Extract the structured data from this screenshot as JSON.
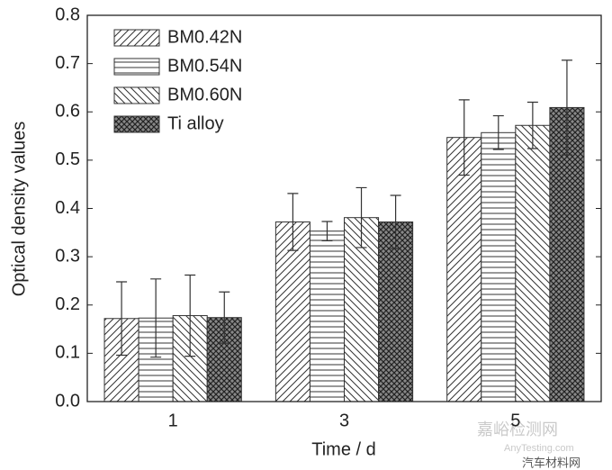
{
  "chart_data": {
    "type": "bar",
    "x_label": "Time / d",
    "y_label": "Optical density values",
    "categories": [
      "1",
      "3",
      "5"
    ],
    "series": [
      {
        "name": "BM0.42N",
        "color": "#333333",
        "pattern": "diagonal",
        "values": [
          0.172,
          0.372,
          0.547
        ],
        "errors": [
          0.076,
          0.059,
          0.078
        ]
      },
      {
        "name": "BM0.54N",
        "color": "#333333",
        "pattern": "horizontal",
        "values": [
          0.173,
          0.353,
          0.557
        ],
        "errors": [
          0.081,
          0.02,
          0.035
        ]
      },
      {
        "name": "BM0.60N",
        "color": "#333333",
        "pattern": "back-diagonal",
        "values": [
          0.178,
          0.381,
          0.572
        ],
        "errors": [
          0.084,
          0.062,
          0.048
        ]
      },
      {
        "name": "Ti alloy",
        "color": "#333333",
        "pattern": "crosshatch",
        "values": [
          0.174,
          0.372,
          0.609
        ],
        "errors": [
          0.053,
          0.055,
          0.098
        ]
      }
    ],
    "ylim": [
      0,
      0.8
    ],
    "yticks": [
      {
        "value": 0,
        "label": "0.0"
      },
      0.1,
      0.2,
      0.3,
      0.4,
      0.5,
      0.6,
      0.7,
      0.8
    ],
    "legend": "upper-left",
    "watermarks": [
      "嘉峪检测网",
      "AnyTesting.com",
      "汽车材料网"
    ]
  }
}
